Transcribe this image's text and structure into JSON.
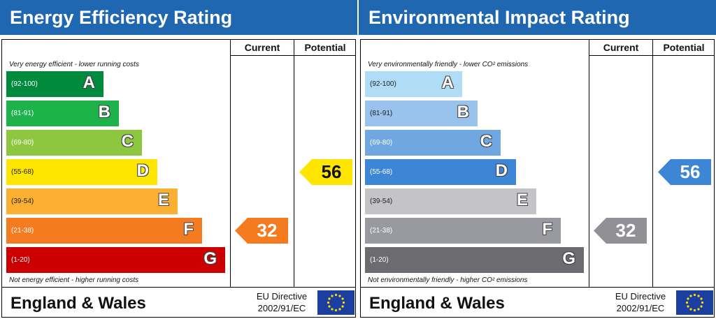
{
  "chart_data": [
    {
      "type": "bar",
      "title": "Energy Efficiency Rating",
      "column_headers": [
        "Current",
        "Potential"
      ],
      "note_top": "Very energy efficient - lower running costs",
      "note_bottom": "Not energy efficient - higher running costs",
      "categories": [
        "A",
        "B",
        "C",
        "D",
        "E",
        "F",
        "G"
      ],
      "ranges": [
        "(92-100)",
        "(81-91)",
        "(69-80)",
        "(55-68)",
        "(39-54)",
        "(21-38)",
        "(1-20)"
      ],
      "colors": [
        "#008a3e",
        "#1db34a",
        "#8dc63f",
        "#ffe600",
        "#fbb034",
        "#f47b20",
        "#cc0000"
      ],
      "dark_range_text": [
        false,
        false,
        false,
        true,
        true,
        false,
        false
      ],
      "current": {
        "value": "32",
        "band": "F",
        "color": "#f47b20",
        "text_dark": false
      },
      "potential": {
        "value": "56",
        "band": "D",
        "color": "#ffe600",
        "text_dark": true
      },
      "footer": "England & Wales",
      "directive": [
        "EU Directive",
        "2002/91/EC"
      ]
    },
    {
      "type": "bar",
      "title": "Environmental Impact Rating",
      "column_headers": [
        "Current",
        "Potential"
      ],
      "note_top": "Very environmentally friendly - lower CO² emissions",
      "note_bottom": "Not environmentally friendly - higher CO² emissions",
      "categories": [
        "A",
        "B",
        "C",
        "D",
        "E",
        "F",
        "G"
      ],
      "ranges": [
        "(92-100)",
        "(81-91)",
        "(69-80)",
        "(55-68)",
        "(39-54)",
        "(21-38)",
        "(1-20)"
      ],
      "colors": [
        "#b0dcf5",
        "#99c2ec",
        "#6fa8e0",
        "#3d86d6",
        "#c4c4c8",
        "#999aa0",
        "#6b6b70"
      ],
      "dark_range_text": [
        true,
        true,
        false,
        false,
        true,
        false,
        false
      ],
      "current": {
        "value": "32",
        "band": "F",
        "color": "#909095",
        "text_dark": false
      },
      "potential": {
        "value": "56",
        "band": "D",
        "color": "#3d86d6",
        "text_dark": false
      },
      "footer": "England & Wales",
      "directive": [
        "EU Directive",
        "2002/91/EC"
      ]
    }
  ]
}
